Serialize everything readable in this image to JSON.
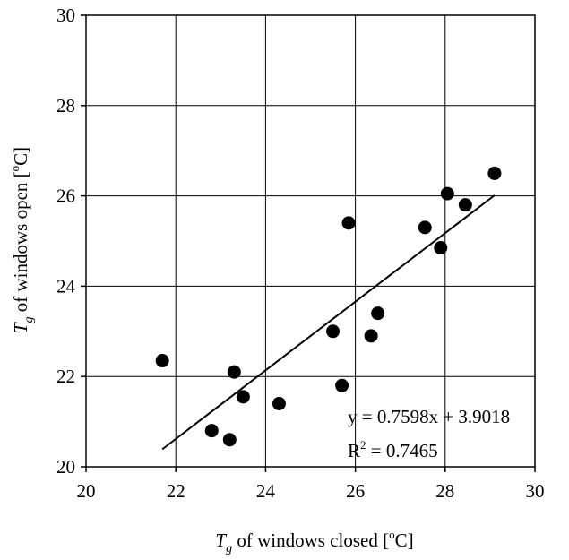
{
  "chart_data": {
    "type": "scatter",
    "x": [
      21.7,
      22.8,
      23.2,
      23.3,
      23.5,
      24.3,
      25.5,
      25.7,
      25.85,
      26.35,
      26.5,
      27.55,
      27.9,
      28.05,
      28.45,
      29.1
    ],
    "y": [
      22.35,
      20.8,
      20.6,
      22.1,
      21.55,
      21.4,
      23.0,
      21.8,
      25.4,
      22.9,
      23.4,
      25.3,
      24.85,
      26.05,
      25.8,
      26.5
    ],
    "xlim": [
      20,
      30
    ],
    "ylim": [
      20,
      30
    ],
    "xticks": [
      20,
      22,
      24,
      26,
      28,
      30
    ],
    "yticks": [
      20,
      22,
      24,
      26,
      28,
      30
    ],
    "grid": true,
    "xlabel": {
      "symbol": "T",
      "subscript": "g",
      "text": " of windows closed [",
      "superscript": "o",
      "unit": "C]"
    },
    "ylabel": {
      "symbol": "T",
      "subscript": "g",
      "text": " of windows open [",
      "superscript": "o",
      "unit": "C]"
    },
    "trendline": {
      "slope": 0.7598,
      "intercept": 3.9018,
      "x_range": [
        21.7,
        29.1
      ]
    },
    "annotations": {
      "equation": "y = 0.7598x + 3.9018",
      "r2_prefix": "R",
      "r2_superscript": "2",
      "r2_value": " = 0.7465"
    },
    "title": "",
    "legend": "none",
    "colors": {
      "points": "#000000",
      "line": "#000000",
      "grid": "#000000"
    }
  }
}
